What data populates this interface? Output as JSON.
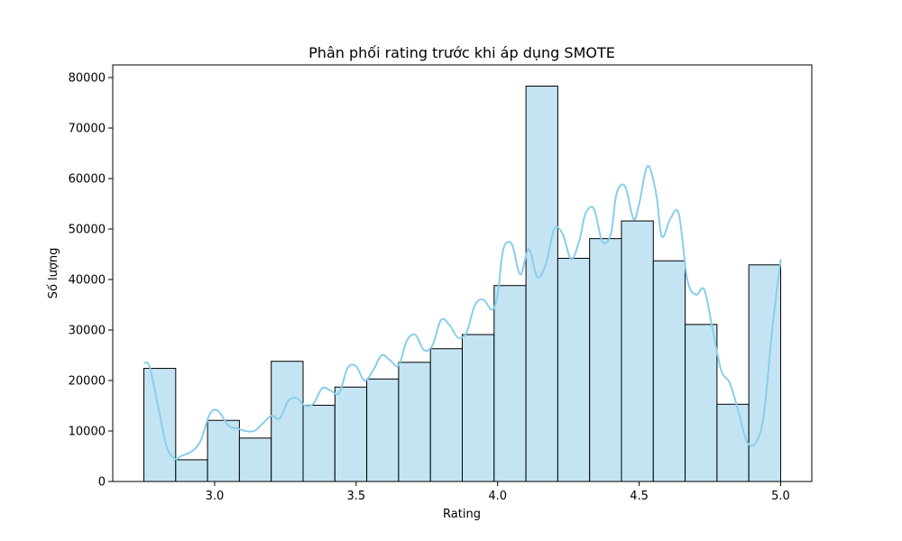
{
  "chart_data": {
    "type": "bar",
    "title": "Phân phối rating trước khi áp dụng SMOTE",
    "xlabel": "Rating",
    "ylabel": "Số lượng",
    "xlim": [
      2.64,
      5.11
    ],
    "ylim": [
      0,
      82500
    ],
    "x_ticks": [
      3.0,
      3.5,
      4.0,
      4.5,
      5.0
    ],
    "x_tick_labels": [
      "3.0",
      "3.5",
      "4.0",
      "4.5",
      "5.0"
    ],
    "y_ticks": [
      0,
      10000,
      20000,
      30000,
      40000,
      50000,
      60000,
      70000,
      80000
    ],
    "y_tick_labels": [
      "0",
      "10000",
      "20000",
      "30000",
      "40000",
      "50000",
      "60000",
      "70000",
      "80000"
    ],
    "bins": {
      "edges": [
        2.75,
        2.8625,
        2.975,
        3.0875,
        3.2,
        3.3125,
        3.425,
        3.5375,
        3.65,
        3.7625,
        3.875,
        3.9875,
        4.1,
        4.2125,
        4.325,
        4.4375,
        4.55,
        4.6625,
        4.775,
        4.8875,
        5.0
      ],
      "counts": [
        22400,
        4300,
        12100,
        8600,
        23800,
        15100,
        18700,
        20300,
        23600,
        26300,
        29100,
        38800,
        78300,
        44200,
        48100,
        51600,
        43700,
        31100,
        15300,
        42900
      ]
    },
    "kde": {
      "x": [
        2.75,
        2.77,
        2.8,
        2.83,
        2.86,
        2.88,
        2.92,
        2.95,
        2.98,
        3.0,
        3.02,
        3.05,
        3.08,
        3.11,
        3.14,
        3.17,
        3.2,
        3.23,
        3.26,
        3.29,
        3.32,
        3.35,
        3.38,
        3.41,
        3.44,
        3.47,
        3.5,
        3.53,
        3.56,
        3.59,
        3.62,
        3.65,
        3.68,
        3.71,
        3.74,
        3.77,
        3.8,
        3.83,
        3.86,
        3.89,
        3.92,
        3.95,
        3.98,
        4.0,
        4.02,
        4.05,
        4.08,
        4.11,
        4.14,
        4.17,
        4.2,
        4.23,
        4.26,
        4.29,
        4.31,
        4.34,
        4.37,
        4.4,
        4.42,
        4.45,
        4.48,
        4.5,
        4.53,
        4.56,
        4.58,
        4.61,
        4.64,
        4.67,
        4.7,
        4.73,
        4.76,
        4.79,
        4.82,
        4.85,
        4.88,
        4.91,
        4.94,
        4.97,
        5.0
      ],
      "y": [
        23400,
        22800,
        15000,
        7000,
        4500,
        5000,
        6000,
        8000,
        13000,
        14200,
        13500,
        11000,
        10500,
        10000,
        10000,
        11500,
        13000,
        12500,
        16000,
        16500,
        15000,
        15500,
        18500,
        18000,
        17500,
        22500,
        22800,
        20000,
        22000,
        25000,
        24000,
        23000,
        28000,
        29000,
        26000,
        27000,
        32000,
        31000,
        28500,
        29500,
        35000,
        36000,
        34000,
        37000,
        46000,
        47000,
        41000,
        46000,
        40500,
        43000,
        50000,
        49000,
        44000,
        48000,
        53000,
        54000,
        47500,
        49000,
        57000,
        58500,
        52000,
        55000,
        62500,
        57000,
        48500,
        52000,
        53000,
        40000,
        37000,
        38000,
        30000,
        22000,
        19500,
        14000,
        8000,
        7500,
        13000,
        30000,
        44000
      ]
    },
    "colors": {
      "bar_fill": "#c5e4f3",
      "bar_edge": "#000000",
      "kde_line": "#87ceeb"
    },
    "grid": false,
    "legend": "none"
  }
}
